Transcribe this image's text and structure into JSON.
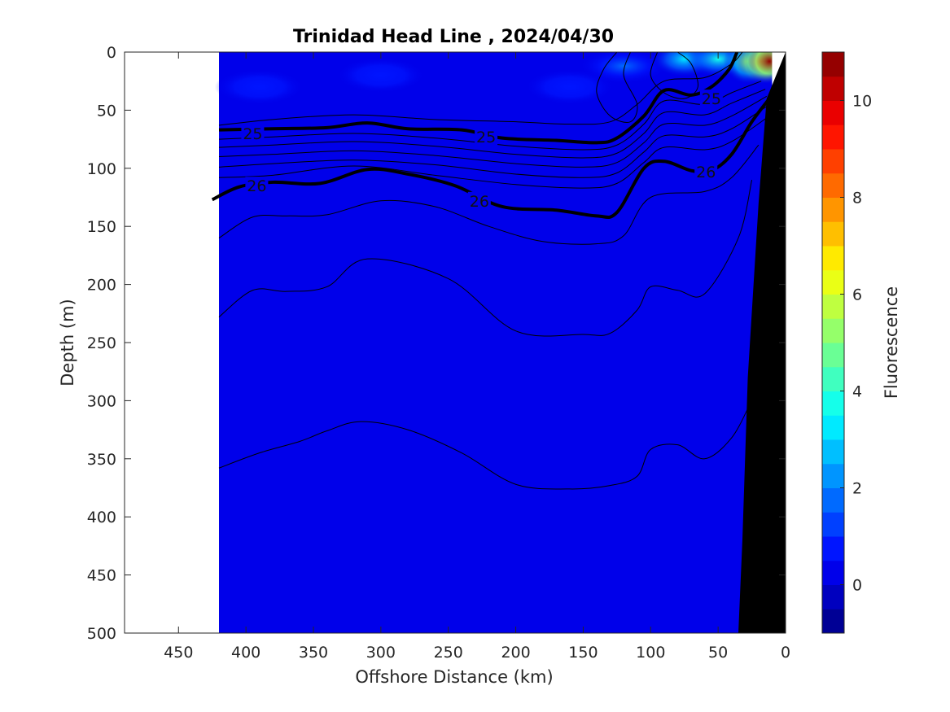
{
  "chart_data": {
    "type": "contour",
    "title": "Trinidad Head Line , 2024/04/30",
    "xlabel": "Offshore Distance (km)",
    "ylabel": "Depth (m)",
    "xlim": [
      490,
      0
    ],
    "ylim": [
      0,
      500
    ],
    "x_reversed": true,
    "y_reversed": true,
    "xticks": [
      450,
      400,
      350,
      300,
      250,
      200,
      150,
      100,
      50,
      0
    ],
    "yticks": [
      0,
      50,
      100,
      150,
      200,
      250,
      300,
      350,
      400,
      450,
      500
    ],
    "data_extent_km": [
      420,
      0
    ],
    "background_fluorescence": 0.3,
    "colorbar": {
      "label": "Fluorescence",
      "range": [
        -1,
        11
      ],
      "ticks": [
        0,
        2,
        4,
        6,
        8,
        10
      ],
      "colormap": "jet",
      "levels": 24
    },
    "fluorescence_patches": [
      {
        "x_km": 120,
        "depth_m": 12,
        "value": 1.5
      },
      {
        "x_km": 75,
        "depth_m": 6,
        "value": 3.2
      },
      {
        "x_km": 50,
        "depth_m": 6,
        "value": 3.5
      },
      {
        "x_km": 28,
        "depth_m": 8,
        "value": 5.5
      },
      {
        "x_km": 18,
        "depth_m": 8,
        "value": 9
      },
      {
        "x_km": 12,
        "depth_m": 8,
        "value": 10.5
      },
      {
        "x_km": 300,
        "depth_m": 20,
        "value": 0.9
      },
      {
        "x_km": 160,
        "depth_m": 30,
        "value": 0.9
      },
      {
        "x_km": 390,
        "depth_m": 30,
        "value": 0.8
      }
    ],
    "density_contours": [
      {
        "label": "",
        "bold": false,
        "points": [
          [
            420,
            63
          ],
          [
            380,
            58
          ],
          [
            320,
            54
          ],
          [
            260,
            58
          ],
          [
            200,
            60
          ],
          [
            160,
            62
          ],
          [
            130,
            60
          ],
          [
            110,
            45
          ],
          [
            90,
            25
          ],
          [
            60,
            22
          ],
          [
            40,
            10
          ],
          [
            32,
            0
          ]
        ]
      },
      {
        "label": "25",
        "bold": true,
        "points": [
          [
            420,
            67
          ],
          [
            380,
            66
          ],
          [
            340,
            65
          ],
          [
            310,
            61
          ],
          [
            280,
            66
          ],
          [
            240,
            67
          ],
          [
            210,
            74
          ],
          [
            170,
            76
          ],
          [
            140,
            78
          ],
          [
            125,
            74
          ],
          [
            105,
            55
          ],
          [
            90,
            33
          ],
          [
            70,
            37
          ],
          [
            55,
            30
          ],
          [
            42,
            15
          ],
          [
            36,
            0
          ]
        ]
      },
      {
        "label": "",
        "bold": false,
        "points": [
          [
            420,
            75
          ],
          [
            380,
            73
          ],
          [
            320,
            70
          ],
          [
            260,
            74
          ],
          [
            200,
            81
          ],
          [
            150,
            84
          ],
          [
            125,
            80
          ],
          [
            105,
            62
          ],
          [
            90,
            42
          ],
          [
            60,
            45
          ],
          [
            40,
            35
          ],
          [
            18,
            25
          ]
        ]
      },
      {
        "label": "",
        "bold": false,
        "points": [
          [
            420,
            82
          ],
          [
            380,
            80
          ],
          [
            320,
            77
          ],
          [
            260,
            81
          ],
          [
            200,
            88
          ],
          [
            150,
            91
          ],
          [
            125,
            87
          ],
          [
            105,
            70
          ],
          [
            90,
            52
          ],
          [
            60,
            54
          ],
          [
            40,
            44
          ],
          [
            15,
            32
          ]
        ]
      },
      {
        "label": "",
        "bold": false,
        "points": [
          [
            420,
            90
          ],
          [
            380,
            88
          ],
          [
            320,
            85
          ],
          [
            260,
            89
          ],
          [
            200,
            96
          ],
          [
            150,
            99
          ],
          [
            125,
            95
          ],
          [
            105,
            78
          ],
          [
            90,
            62
          ],
          [
            60,
            63
          ],
          [
            40,
            55
          ],
          [
            14,
            38
          ]
        ]
      },
      {
        "label": "",
        "bold": false,
        "points": [
          [
            420,
            99
          ],
          [
            380,
            96
          ],
          [
            320,
            93
          ],
          [
            260,
            97
          ],
          [
            200,
            105
          ],
          [
            150,
            108
          ],
          [
            125,
            104
          ],
          [
            105,
            86
          ],
          [
            90,
            72
          ],
          [
            60,
            73
          ],
          [
            40,
            66
          ],
          [
            13,
            46
          ]
        ]
      },
      {
        "label": "",
        "bold": false,
        "points": [
          [
            420,
            108
          ],
          [
            380,
            106
          ],
          [
            320,
            98
          ],
          [
            260,
            106
          ],
          [
            200,
            114
          ],
          [
            150,
            117
          ],
          [
            125,
            113
          ],
          [
            105,
            95
          ],
          [
            90,
            82
          ],
          [
            60,
            84
          ],
          [
            40,
            77
          ],
          [
            12,
            55
          ]
        ]
      },
      {
        "label": "26",
        "bold": true,
        "points": [
          [
            425,
            127
          ],
          [
            405,
            116
          ],
          [
            380,
            112
          ],
          [
            345,
            113
          ],
          [
            310,
            101
          ],
          [
            280,
            105
          ],
          [
            245,
            115
          ],
          [
            210,
            133
          ],
          [
            170,
            136
          ],
          [
            140,
            141
          ],
          [
            125,
            138
          ],
          [
            105,
            100
          ],
          [
            90,
            94
          ],
          [
            70,
            102
          ],
          [
            55,
            102
          ],
          [
            40,
            88
          ],
          [
            25,
            60
          ],
          [
            12,
            40
          ]
        ]
      },
      {
        "label": "",
        "bold": false,
        "points": [
          [
            420,
            160
          ],
          [
            395,
            142
          ],
          [
            370,
            141
          ],
          [
            340,
            140
          ],
          [
            300,
            128
          ],
          [
            260,
            133
          ],
          [
            220,
            150
          ],
          [
            180,
            163
          ],
          [
            140,
            165
          ],
          [
            120,
            158
          ],
          [
            100,
            125
          ],
          [
            60,
            120
          ],
          [
            40,
            108
          ],
          [
            20,
            80
          ]
        ]
      },
      {
        "label": "",
        "bold": false,
        "points": [
          [
            420,
            228
          ],
          [
            395,
            205
          ],
          [
            370,
            206
          ],
          [
            340,
            202
          ],
          [
            310,
            178
          ],
          [
            250,
            195
          ],
          [
            200,
            240
          ],
          [
            150,
            243
          ],
          [
            130,
            242
          ],
          [
            110,
            222
          ],
          [
            100,
            202
          ],
          [
            80,
            205
          ],
          [
            60,
            208
          ],
          [
            35,
            160
          ],
          [
            25,
            110
          ]
        ]
      },
      {
        "label": "",
        "bold": false,
        "points": [
          [
            420,
            358
          ],
          [
            390,
            345
          ],
          [
            360,
            335
          ],
          [
            340,
            326
          ],
          [
            315,
            318
          ],
          [
            280,
            325
          ],
          [
            240,
            345
          ],
          [
            200,
            372
          ],
          [
            160,
            376
          ],
          [
            130,
            373
          ],
          [
            110,
            365
          ],
          [
            100,
            342
          ],
          [
            80,
            338
          ],
          [
            60,
            350
          ],
          [
            40,
            332
          ],
          [
            25,
            300
          ],
          [
            15,
            280
          ]
        ]
      },
      {
        "label": "",
        "bold": false,
        "points": [
          [
            125,
            0
          ],
          [
            135,
            15
          ],
          [
            140,
            35
          ],
          [
            130,
            55
          ],
          [
            115,
            60
          ],
          [
            110,
            45
          ],
          [
            120,
            20
          ],
          [
            115,
            0
          ]
        ]
      },
      {
        "label": "",
        "bold": false,
        "points": [
          [
            95,
            0
          ],
          [
            100,
            20
          ],
          [
            90,
            35
          ],
          [
            75,
            40
          ],
          [
            65,
            30
          ],
          [
            70,
            10
          ],
          [
            80,
            0
          ]
        ]
      }
    ],
    "contour_labels": [
      {
        "text": "25",
        "x_km": 395,
        "depth_m": 70
      },
      {
        "text": "25",
        "x_km": 222,
        "depth_m": 73
      },
      {
        "text": "25",
        "x_km": 55,
        "depth_m": 40
      },
      {
        "text": "26",
        "x_km": 392,
        "depth_m": 115
      },
      {
        "text": "26",
        "x_km": 227,
        "depth_m": 128
      },
      {
        "text": "26",
        "x_km": 59,
        "depth_m": 103
      }
    ],
    "bathymetry": [
      [
        0,
        0
      ],
      [
        14,
        40
      ],
      [
        20,
        130
      ],
      [
        28,
        280
      ],
      [
        32,
        420
      ],
      [
        35,
        500
      ],
      [
        0,
        500
      ]
    ],
    "nodata_region": [
      [
        0,
        0
      ],
      [
        10,
        0
      ],
      [
        10,
        55
      ],
      [
        0,
        55
      ]
    ]
  }
}
